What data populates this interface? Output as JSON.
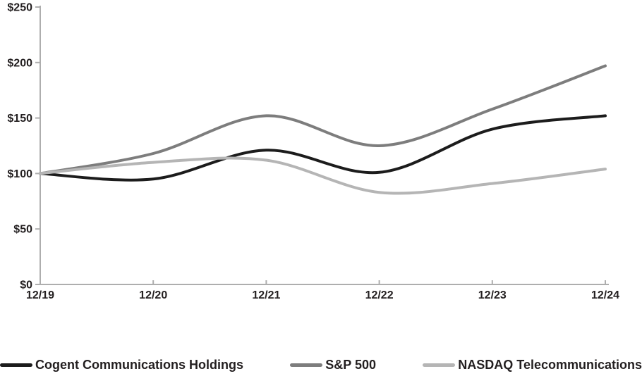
{
  "chart_data": {
    "type": "line",
    "title": "",
    "xlabel": "",
    "ylabel": "",
    "categories": [
      "12/19",
      "12/20",
      "12/21",
      "12/22",
      "12/23",
      "12/24"
    ],
    "series": [
      {
        "name": "Cogent Communications Holdings",
        "values": [
          100,
          95,
          121,
          101,
          140,
          152
        ],
        "color": "#1c1c1c"
      },
      {
        "name": "S&P 500",
        "values": [
          100,
          118,
          152,
          125,
          158,
          197
        ],
        "color": "#7d7d7d"
      },
      {
        "name": "NASDAQ Telecommunications",
        "values": [
          100,
          110,
          112,
          83,
          91,
          104
        ],
        "color": "#b5b5b5"
      }
    ],
    "ylim": [
      0,
      250
    ],
    "y_tick_step": 50,
    "y_tick_labels": [
      "$0",
      "$50",
      "$100",
      "$150",
      "$200",
      "$250"
    ],
    "grid": false,
    "smoothed": true,
    "legend_position": "bottom"
  },
  "style": {
    "axis_color": "#aeaeae",
    "text_color": "#231f20",
    "background": "#ffffff",
    "line_width": 4
  }
}
